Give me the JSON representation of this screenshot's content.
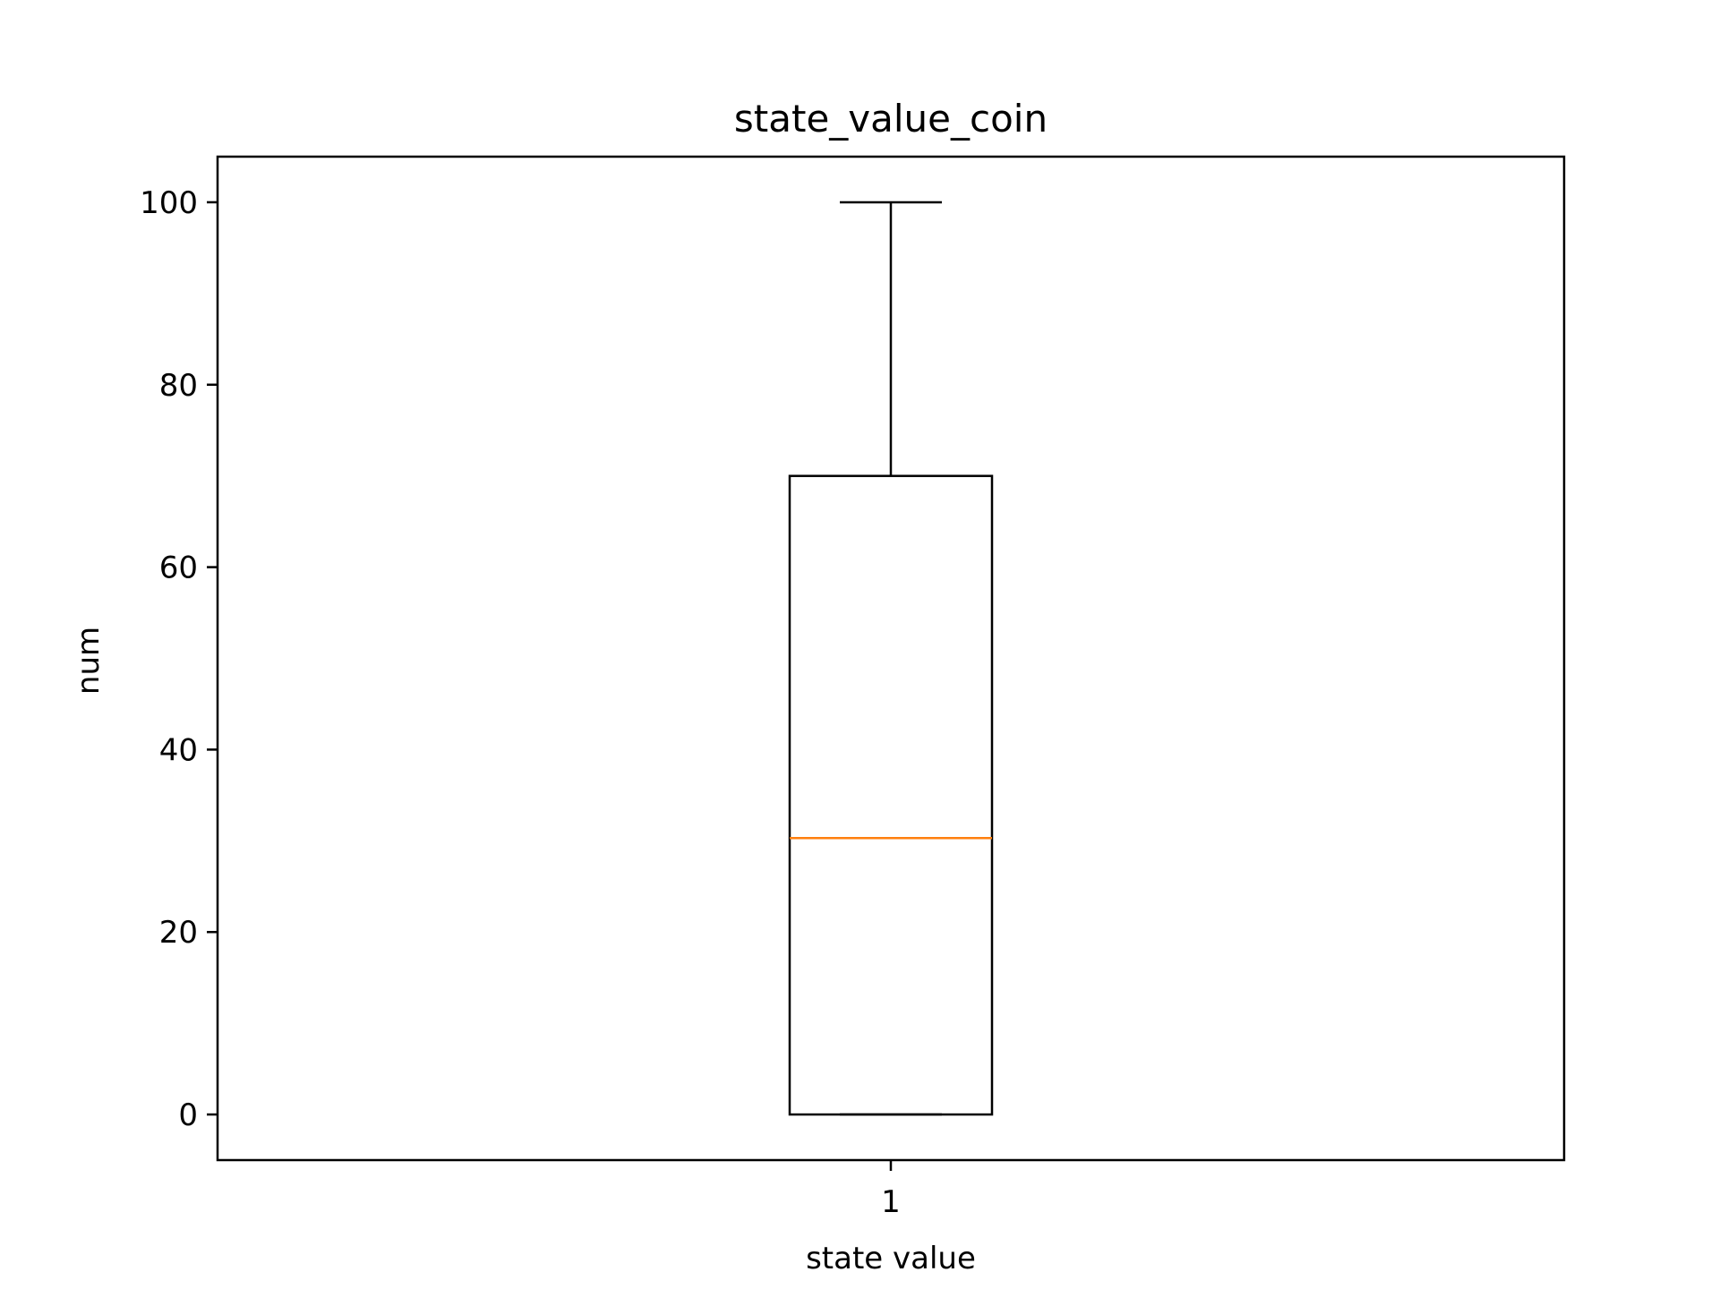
{
  "chart_data": {
    "type": "box",
    "title": "state_value_coin",
    "xlabel": "state value",
    "ylabel": "num",
    "categories": [
      "1"
    ],
    "boxes": [
      {
        "category": "1",
        "whisker_low": 0,
        "q1": 0,
        "median": 30.3,
        "q3": 70,
        "whisker_high": 100
      }
    ],
    "ylim": [
      -5,
      105
    ],
    "yticks": [
      0,
      20,
      40,
      60,
      80,
      100
    ],
    "ytick_labels": [
      "0",
      "20",
      "40",
      "60",
      "80",
      "100"
    ],
    "grid": false,
    "colors": {
      "box": "#000000",
      "median": "#ff7f0e"
    }
  }
}
